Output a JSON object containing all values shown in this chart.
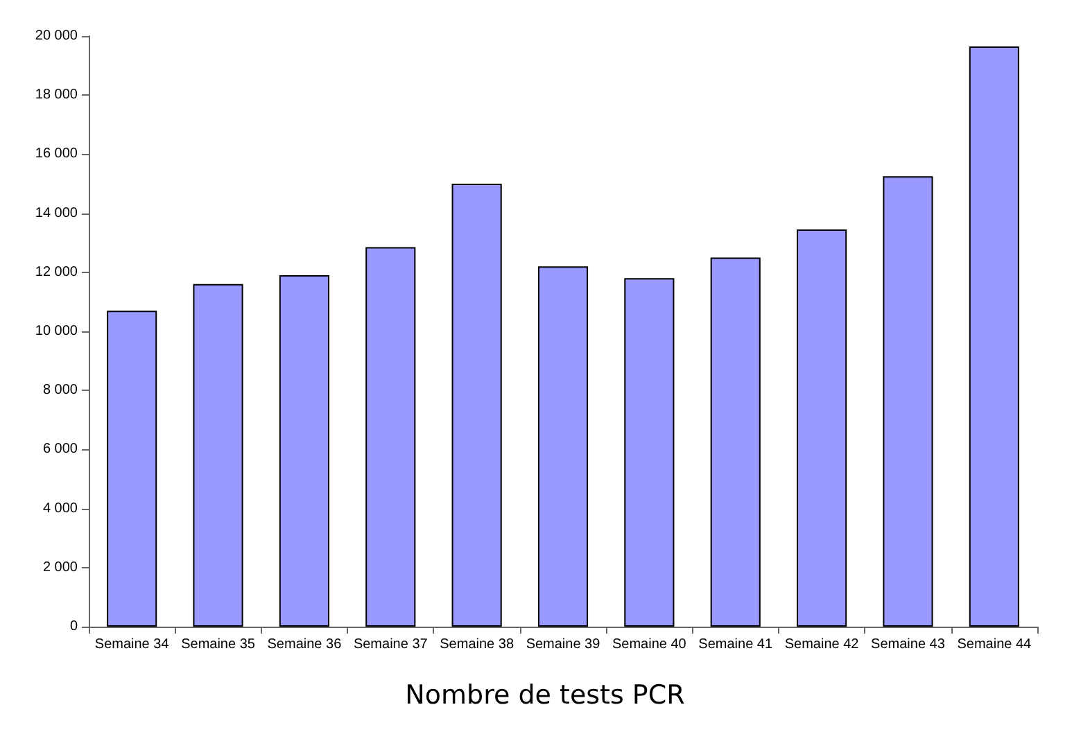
{
  "chart_data": {
    "type": "bar",
    "title": "Nombre de tests PCR",
    "categories": [
      "Semaine 34",
      "Semaine 35",
      "Semaine 36",
      "Semaine 37",
      "Semaine 38",
      "Semaine 39",
      "Semaine 40",
      "Semaine 41",
      "Semaine 42",
      "Semaine 43",
      "Semaine 44"
    ],
    "values": [
      10700,
      11600,
      11900,
      12850,
      15000,
      12200,
      11800,
      12500,
      13450,
      15250,
      19650
    ],
    "color": "#9999ff",
    "ylim": [
      0,
      20000
    ],
    "yticks": [
      0,
      2000,
      4000,
      6000,
      8000,
      10000,
      12000,
      14000,
      16000,
      18000,
      20000
    ]
  }
}
